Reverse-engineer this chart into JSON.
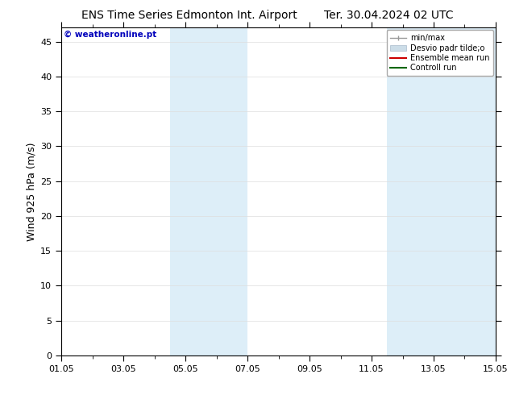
{
  "title_left": "ENS Time Series Edmonton Int. Airport",
  "title_right": "Ter. 30.04.2024 02 UTC",
  "ylabel": "Wind 925 hPa (m/s)",
  "watermark": "© weatheronline.pt",
  "ylim": [
    0,
    47
  ],
  "yticks": [
    0,
    5,
    10,
    15,
    20,
    25,
    30,
    35,
    40,
    45
  ],
  "xtick_labels": [
    "01.05",
    "03.05",
    "05.05",
    "07.05",
    "09.05",
    "11.05",
    "13.05",
    "15.05"
  ],
  "xtick_positions": [
    0,
    2,
    4,
    6,
    8,
    10,
    12,
    14
  ],
  "xlim": [
    0,
    14
  ],
  "shaded_bands": [
    {
      "x_start": 3.5,
      "x_end": 4.5,
      "color": "#ddeef8"
    },
    {
      "x_start": 4.5,
      "x_end": 6.0,
      "color": "#ddeef8"
    },
    {
      "x_start": 10.5,
      "x_end": 11.5,
      "color": "#ddeef8"
    },
    {
      "x_start": 11.5,
      "x_end": 14.0,
      "color": "#ddeef8"
    }
  ],
  "legend_entries": [
    {
      "label": "min/max",
      "color": "#aaaaaa"
    },
    {
      "label": "Desvio padr tilde;o",
      "color": "#ccdde8"
    },
    {
      "label": "Ensemble mean run",
      "color": "#cc0000"
    },
    {
      "label": "Controll run",
      "color": "#006600"
    }
  ],
  "bg_color": "#ffffff",
  "plot_bg_color": "#ffffff",
  "title_fontsize": 10,
  "tick_fontsize": 8,
  "ylabel_fontsize": 9,
  "watermark_color": "#0000bb",
  "watermark_fontsize": 7.5
}
